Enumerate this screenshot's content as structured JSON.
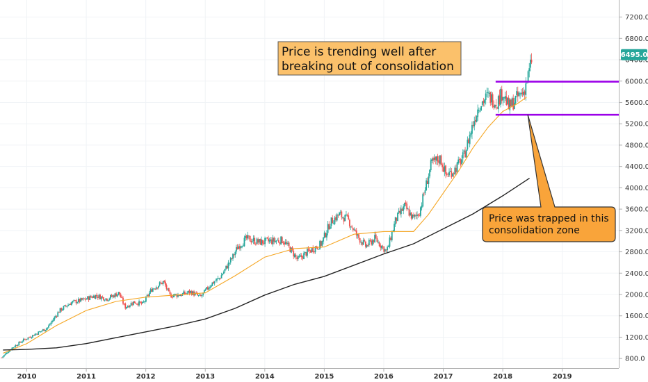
{
  "colors": {
    "up": "#26a69a",
    "down": "#ef5350",
    "ma_fast": "#f5a623",
    "ma_slow": "#222222",
    "zone": "#9b00e8",
    "callout_fill": "#f9a43a",
    "title_fill": "#fbc16b",
    "price_label": "#26a69a"
  },
  "chart_data": {
    "type": "candlestick",
    "x_axis": {
      "ticks": [
        "2010",
        "2011",
        "2012",
        "2013",
        "2014",
        "2015",
        "2016",
        "2017",
        "2018",
        "2019"
      ],
      "range": [
        2009.55,
        2019.95
      ]
    },
    "y_axis": {
      "ticks": [
        "800.0",
        "1200.0",
        "1600.0",
        "2000.0",
        "2400.0",
        "2800.0",
        "3200.0",
        "3600.0",
        "4000.0",
        "4400.0",
        "4800.0",
        "5200.0",
        "5600.0",
        "6000.0",
        "6400.0",
        "6800.0",
        "7200.0"
      ],
      "range": [
        620,
        7520
      ],
      "position": "right"
    },
    "last_price": "6495.0",
    "price_path": [
      [
        2009.58,
        820
      ],
      [
        2009.75,
        1000
      ],
      [
        2009.95,
        1150
      ],
      [
        2010.15,
        1260
      ],
      [
        2010.35,
        1380
      ],
      [
        2010.55,
        1700
      ],
      [
        2010.75,
        1850
      ],
      [
        2010.95,
        1900
      ],
      [
        2011.15,
        1980
      ],
      [
        2011.35,
        1920
      ],
      [
        2011.55,
        2030
      ],
      [
        2011.65,
        1760
      ],
      [
        2011.8,
        1860
      ],
      [
        2011.95,
        1820
      ],
      [
        2012.1,
        2100
      ],
      [
        2012.3,
        2240
      ],
      [
        2012.4,
        1980
      ],
      [
        2012.6,
        2000
      ],
      [
        2012.75,
        2050
      ],
      [
        2012.92,
        1950
      ],
      [
        2013.1,
        2200
      ],
      [
        2013.25,
        2320
      ],
      [
        2013.45,
        2680
      ],
      [
        2013.55,
        2900
      ],
      [
        2013.7,
        3050
      ],
      [
        2013.9,
        2980
      ],
      [
        2014.1,
        3000
      ],
      [
        2014.3,
        3020
      ],
      [
        2014.45,
        2820
      ],
      [
        2014.55,
        2650
      ],
      [
        2014.7,
        2780
      ],
      [
        2014.95,
        2950
      ],
      [
        2015.1,
        3350
      ],
      [
        2015.25,
        3500
      ],
      [
        2015.4,
        3400
      ],
      [
        2015.55,
        3100
      ],
      [
        2015.7,
        2900
      ],
      [
        2015.85,
        3050
      ],
      [
        2016.05,
        2800
      ],
      [
        2016.2,
        3400
      ],
      [
        2016.35,
        3650
      ],
      [
        2016.5,
        3420
      ],
      [
        2016.6,
        3550
      ],
      [
        2016.7,
        4000
      ],
      [
        2016.8,
        4450
      ],
      [
        2016.95,
        4550
      ],
      [
        2017.05,
        4230
      ],
      [
        2017.2,
        4350
      ],
      [
        2017.35,
        4600
      ],
      [
        2017.5,
        5200
      ],
      [
        2017.6,
        5550
      ],
      [
        2017.75,
        5720
      ],
      [
        2017.9,
        5600
      ],
      [
        2018.0,
        5800
      ],
      [
        2018.1,
        5500
      ],
      [
        2018.25,
        5700
      ],
      [
        2018.35,
        5800
      ],
      [
        2018.45,
        6200
      ],
      [
        2018.5,
        6495
      ]
    ],
    "series": [
      {
        "type": "moving-average",
        "points": [
          [
            2009.6,
            900
          ],
          [
            2010.0,
            1080
          ],
          [
            2010.5,
            1420
          ],
          [
            2011.0,
            1700
          ],
          [
            2011.5,
            1870
          ],
          [
            2012.0,
            1950
          ],
          [
            2012.5,
            1990
          ],
          [
            2013.0,
            2030
          ],
          [
            2013.5,
            2350
          ],
          [
            2014.0,
            2700
          ],
          [
            2014.5,
            2860
          ],
          [
            2015.0,
            2890
          ],
          [
            2015.5,
            3130
          ],
          [
            2016.0,
            3180
          ],
          [
            2016.5,
            3180
          ],
          [
            2016.75,
            3500
          ],
          [
            2017.0,
            3900
          ],
          [
            2017.25,
            4300
          ],
          [
            2017.5,
            4750
          ],
          [
            2017.75,
            5130
          ],
          [
            2018.0,
            5430
          ],
          [
            2018.25,
            5580
          ],
          [
            2018.4,
            5700
          ]
        ]
      },
      {
        "type": "moving-average",
        "points": [
          [
            2009.6,
            960
          ],
          [
            2010.0,
            970
          ],
          [
            2010.5,
            1000
          ],
          [
            2011.0,
            1080
          ],
          [
            2011.5,
            1190
          ],
          [
            2012.0,
            1300
          ],
          [
            2012.5,
            1410
          ],
          [
            2013.0,
            1540
          ],
          [
            2013.5,
            1740
          ],
          [
            2014.0,
            1990
          ],
          [
            2014.5,
            2190
          ],
          [
            2015.0,
            2340
          ],
          [
            2015.5,
            2550
          ],
          [
            2016.0,
            2760
          ],
          [
            2016.5,
            2950
          ],
          [
            2017.0,
            3230
          ],
          [
            2017.5,
            3510
          ],
          [
            2018.0,
            3850
          ],
          [
            2018.45,
            4180
          ]
        ]
      }
    ],
    "levels": [
      {
        "value": 5990,
        "from": 2017.88,
        "to": 2019.95
      },
      {
        "value": 5370,
        "from": 2017.88,
        "to": 2019.95
      }
    ],
    "annotations": {
      "title": "Price is trending well after breaking out of consolidation",
      "callout": "Price was trapped in this consolidation zone",
      "callout_target": [
        2018.42,
        5370
      ]
    }
  }
}
